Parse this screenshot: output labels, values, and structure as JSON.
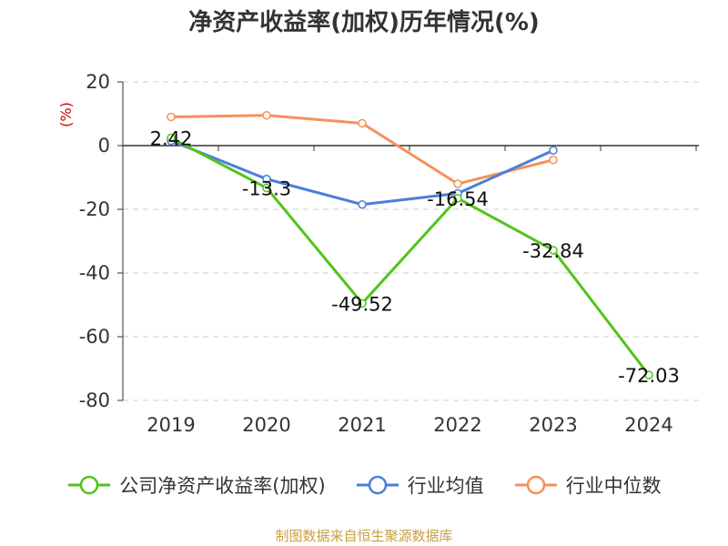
{
  "chart_data": {
    "type": "line",
    "title": "净资产收益率(加权)历年情况(%)",
    "ylabel": "(%)",
    "xlabel": "",
    "categories": [
      "2019",
      "2020",
      "2021",
      "2022",
      "2023",
      "2024"
    ],
    "ylim": [
      -80,
      20
    ],
    "yticks": [
      20,
      0,
      -20,
      -40,
      -60,
      -80
    ],
    "grid": true,
    "legend_position": "bottom",
    "series": [
      {
        "name": "公司净资产收益率(加权)",
        "color": "#52c41a",
        "values": [
          2.42,
          -13.3,
          -49.52,
          -16.54,
          -32.84,
          -72.03
        ],
        "labels": [
          "2.42",
          "-13.3",
          "-49.52",
          "-16.54",
          "-32.84",
          "-72.03"
        ]
      },
      {
        "name": "行业均值",
        "color": "#4a7fdb",
        "values": [
          1.5,
          -10.5,
          -18.5,
          -15.0,
          -1.5,
          null
        ]
      },
      {
        "name": "行业中位数",
        "color": "#f5915a",
        "values": [
          9.0,
          9.5,
          7.0,
          -12.0,
          -4.5,
          null
        ]
      }
    ]
  },
  "source": "制图数据来自恒生聚源数据库"
}
